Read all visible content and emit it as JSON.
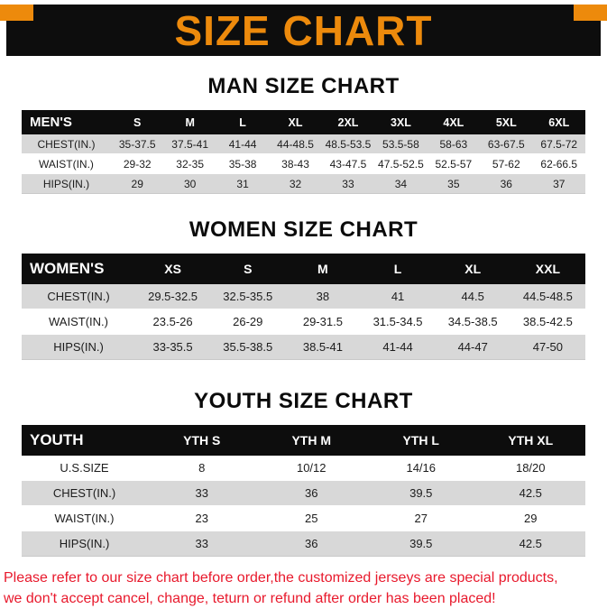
{
  "banner": {
    "title": "SIZE CHART"
  },
  "chart_data": [
    {
      "type": "table",
      "title": "MAN SIZE CHART",
      "corner_label": "MEN'S",
      "columns": [
        "S",
        "M",
        "L",
        "XL",
        "2XL",
        "3XL",
        "4XL",
        "5XL",
        "6XL"
      ],
      "rows": [
        {
          "label": "CHEST(IN.)",
          "values": [
            "35-37.5",
            "37.5-41",
            "41-44",
            "44-48.5",
            "48.5-53.5",
            "53.5-58",
            "58-63",
            "63-67.5",
            "67.5-72"
          ]
        },
        {
          "label": "WAIST(IN.)",
          "values": [
            "29-32",
            "32-35",
            "35-38",
            "38-43",
            "43-47.5",
            "47.5-52.5",
            "52.5-57",
            "57-62",
            "62-66.5"
          ]
        },
        {
          "label": "HIPS(IN.)",
          "values": [
            "29",
            "30",
            "31",
            "32",
            "33",
            "34",
            "35",
            "36",
            "37"
          ]
        }
      ]
    },
    {
      "type": "table",
      "title": "WOMEN SIZE CHART",
      "corner_label": "WOMEN'S",
      "columns": [
        "XS",
        "S",
        "M",
        "L",
        "XL",
        "XXL"
      ],
      "rows": [
        {
          "label": "CHEST(IN.)",
          "values": [
            "29.5-32.5",
            "32.5-35.5",
            "38",
            "41",
            "44.5",
            "44.5-48.5"
          ]
        },
        {
          "label": "WAIST(IN.)",
          "values": [
            "23.5-26",
            "26-29",
            "29-31.5",
            "31.5-34.5",
            "34.5-38.5",
            "38.5-42.5"
          ]
        },
        {
          "label": "HIPS(IN.)",
          "values": [
            "33-35.5",
            "35.5-38.5",
            "38.5-41",
            "41-44",
            "44-47",
            "47-50"
          ]
        }
      ]
    },
    {
      "type": "table",
      "title": "YOUTH SIZE CHART",
      "corner_label": "YOUTH",
      "columns": [
        "YTH S",
        "YTH M",
        "YTH L",
        "YTH XL"
      ],
      "rows": [
        {
          "label": "U.S.SIZE",
          "values": [
            "8",
            "10/12",
            "14/16",
            "18/20"
          ]
        },
        {
          "label": "CHEST(IN.)",
          "values": [
            "33",
            "36",
            "39.5",
            "42.5"
          ]
        },
        {
          "label": "WAIST(IN.)",
          "values": [
            "23",
            "25",
            "27",
            "29"
          ]
        },
        {
          "label": "HIPS(IN.)",
          "values": [
            "33",
            "36",
            "39.5",
            "42.5"
          ]
        }
      ]
    }
  ],
  "footer": {
    "line1": "Please refer to our size chart before order,the customized jerseys are special products,",
    "line2": "we don't accept cancel, change, teturn or refund after order has been placed!"
  },
  "colors": {
    "accent_orange": "#ED8A0C",
    "table_header_bg": "#0D0D0D",
    "row_shade_gray": "#D8D8D8",
    "note_red": "#E8192C"
  }
}
